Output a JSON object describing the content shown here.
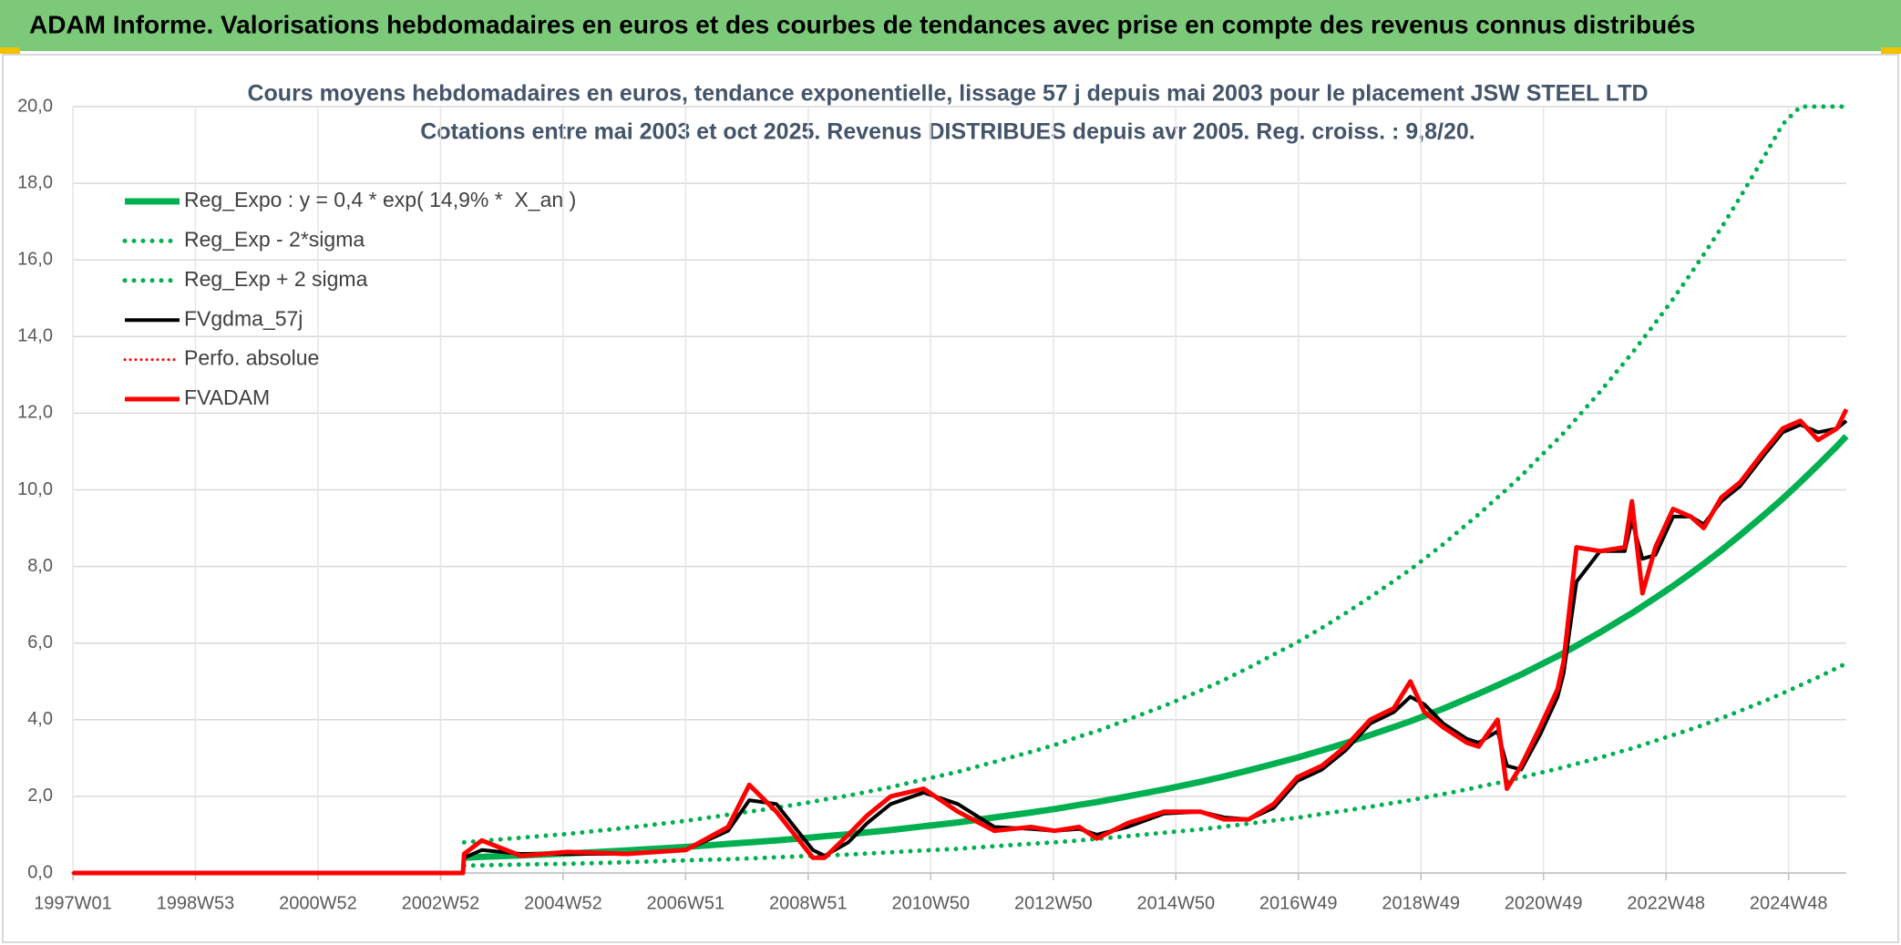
{
  "header": {
    "title": "ADAM Informe. Valorisations hebdomadaires en euros et des courbes de tendances avec prise en compte des revenus connus distribués"
  },
  "chart_data": {
    "type": "line",
    "title": "Cours moyens hebdomadaires en euros, tendance exponentielle, lissage 57 j depuis mai 2003 pour le placement JSW STEEL LTD",
    "subtitle": "Cotations entre mai 2003 et oct 2025. Revenus DISTRIBUES depuis avr 2005. Reg. croiss. : 9,8/20.",
    "x": [
      0,
      331,
      332,
      347,
      380,
      420,
      470,
      520,
      556,
      574,
      597,
      628,
      638,
      658,
      674,
      694,
      722,
      751,
      782,
      813,
      833,
      854,
      869,
      895,
      926,
      957,
      977,
      998,
      1019,
      1039,
      1060,
      1080,
      1101,
      1121,
      1135,
      1147,
      1163,
      1183,
      1193,
      1209,
      1217,
      1229,
      1245,
      1260,
      1265,
      1276,
      1296,
      1317,
      1323,
      1332,
      1343,
      1358,
      1373,
      1384,
      1399,
      1415,
      1435,
      1451,
      1466,
      1481,
      1497,
      1505
    ],
    "xlim": [
      0,
      1505
    ],
    "xticks": [
      {
        "value": 0,
        "label": "1997W01"
      },
      {
        "value": 104,
        "label": "1998W53"
      },
      {
        "value": 208,
        "label": "2000W52"
      },
      {
        "value": 312,
        "label": "2002W52"
      },
      {
        "value": 416,
        "label": "2004W52"
      },
      {
        "value": 520,
        "label": "2006W51"
      },
      {
        "value": 624,
        "label": "2008W51"
      },
      {
        "value": 728,
        "label": "2010W50"
      },
      {
        "value": 832,
        "label": "2012W50"
      },
      {
        "value": 936,
        "label": "2014W50"
      },
      {
        "value": 1040,
        "label": "2016W49"
      },
      {
        "value": 1144,
        "label": "2018W49"
      },
      {
        "value": 1248,
        "label": "2020W49"
      },
      {
        "value": 1352,
        "label": "2022W48"
      },
      {
        "value": 1456,
        "label": "2024W48"
      }
    ],
    "ylim": [
      0,
      20
    ],
    "yticks": [
      {
        "value": 0,
        "label": "0,0"
      },
      {
        "value": 2,
        "label": "2,0"
      },
      {
        "value": 4,
        "label": "4,0"
      },
      {
        "value": 6,
        "label": "6,0"
      },
      {
        "value": 8,
        "label": "8,0"
      },
      {
        "value": 10,
        "label": "10,0"
      },
      {
        "value": 12,
        "label": "12,0"
      },
      {
        "value": 14,
        "label": "14,0"
      },
      {
        "value": 16,
        "label": "16,0"
      },
      {
        "value": 18,
        "label": "18,0"
      },
      {
        "value": 20,
        "label": "20,0"
      }
    ],
    "grid": true,
    "legend": "top-left",
    "series": [
      {
        "name": "Reg_Expo : y = 0,4 * exp( 14,9% *  X_an )",
        "color": "#00b050",
        "dotted": false,
        "width": 7,
        "values": [
          null,
          null,
          0.4,
          0.42,
          0.46,
          0.51,
          0.59,
          0.68,
          0.76,
          0.8,
          0.85,
          0.93,
          0.96,
          1.01,
          1.06,
          1.12,
          1.22,
          1.32,
          1.45,
          1.58,
          1.67,
          1.78,
          1.85,
          2.0,
          2.18,
          2.38,
          2.52,
          2.68,
          2.85,
          3.01,
          3.2,
          3.39,
          3.6,
          3.81,
          3.96,
          4.1,
          4.29,
          4.55,
          4.68,
          4.9,
          5.01,
          5.18,
          5.43,
          5.66,
          5.74,
          5.93,
          6.28,
          6.67,
          6.78,
          6.96,
          7.18,
          7.49,
          7.82,
          8.07,
          8.42,
          8.82,
          9.34,
          9.77,
          10.2,
          10.65,
          11.14,
          11.4
        ]
      },
      {
        "name": "Reg_Exp - 2*sigma",
        "color": "#00b050",
        "dotted": true,
        "width": 5,
        "values": [
          null,
          null,
          0.19,
          0.2,
          0.22,
          0.24,
          0.28,
          0.33,
          0.36,
          0.38,
          0.41,
          0.45,
          0.46,
          0.48,
          0.51,
          0.54,
          0.59,
          0.63,
          0.7,
          0.76,
          0.8,
          0.85,
          0.89,
          0.96,
          1.05,
          1.14,
          1.21,
          1.29,
          1.37,
          1.44,
          1.54,
          1.63,
          1.73,
          1.83,
          1.9,
          1.97,
          2.06,
          2.18,
          2.25,
          2.35,
          2.4,
          2.49,
          2.61,
          2.72,
          2.76,
          2.85,
          3.01,
          3.2,
          3.25,
          3.34,
          3.45,
          3.6,
          3.75,
          3.87,
          4.04,
          4.23,
          4.48,
          4.69,
          4.9,
          5.11,
          5.35,
          5.47
        ]
      },
      {
        "name": "Reg_Exp + 2 sigma",
        "color": "#00b050",
        "dotted": true,
        "width": 5,
        "values": [
          null,
          null,
          0.8,
          0.84,
          0.92,
          1.02,
          1.18,
          1.36,
          1.52,
          1.6,
          1.7,
          1.86,
          1.92,
          2.02,
          2.12,
          2.24,
          2.44,
          2.64,
          2.9,
          3.16,
          3.34,
          3.56,
          3.7,
          4.0,
          4.36,
          4.76,
          5.04,
          5.36,
          5.7,
          6.02,
          6.4,
          6.78,
          7.2,
          7.62,
          7.92,
          8.2,
          8.58,
          9.1,
          9.36,
          9.8,
          10.02,
          10.36,
          10.86,
          11.32,
          11.48,
          11.86,
          12.56,
          13.34,
          13.56,
          13.92,
          14.36,
          14.98,
          15.64,
          16.14,
          16.84,
          17.64,
          18.68,
          19.54,
          20,
          20,
          20,
          20
        ]
      },
      {
        "name": "FVgdma_57j",
        "color": "#000000",
        "dotted": false,
        "width": 4,
        "values": [
          0,
          0,
          0.4,
          0.6,
          0.5,
          0.5,
          0.5,
          0.6,
          1.1,
          1.9,
          1.8,
          0.6,
          0.45,
          0.8,
          1.3,
          1.8,
          2.1,
          1.8,
          1.2,
          1.15,
          1.1,
          1.15,
          1.0,
          1.2,
          1.55,
          1.6,
          1.45,
          1.4,
          1.7,
          2.4,
          2.7,
          3.2,
          3.9,
          4.2,
          4.6,
          4.4,
          3.9,
          3.5,
          3.4,
          3.7,
          2.8,
          2.7,
          3.6,
          4.6,
          5.2,
          7.6,
          8.4,
          8.4,
          9.2,
          8.2,
          8.3,
          9.3,
          9.3,
          9.1,
          9.7,
          10.1,
          10.9,
          11.5,
          11.7,
          11.5,
          11.6,
          11.8
        ]
      },
      {
        "name": "Perfo. absolue",
        "color": "#ff0000",
        "dotted": true,
        "width": 3,
        "values": [
          0,
          0,
          0.5,
          0.85,
          0.45,
          0.55,
          0.5,
          0.6,
          1.2,
          2.3,
          1.6,
          0.4,
          0.4,
          1.0,
          1.5,
          2.0,
          2.2,
          1.6,
          1.1,
          1.2,
          1.1,
          1.2,
          0.9,
          1.3,
          1.6,
          1.6,
          1.4,
          1.4,
          1.8,
          2.5,
          2.8,
          3.3,
          4.0,
          4.3,
          5.0,
          4.2,
          3.8,
          3.4,
          3.3,
          4.0,
          2.2,
          2.8,
          3.8,
          4.8,
          5.5,
          8.5,
          8.4,
          8.5,
          9.7,
          7.3,
          8.5,
          9.5,
          9.3,
          9.0,
          9.8,
          10.2,
          11.0,
          11.6,
          11.8,
          11.3,
          11.6,
          12.1
        ]
      },
      {
        "name": "FVADAM",
        "color": "#ff0000",
        "dotted": false,
        "width": 5,
        "values": [
          0,
          0,
          0.5,
          0.85,
          0.45,
          0.55,
          0.5,
          0.6,
          1.2,
          2.3,
          1.6,
          0.4,
          0.4,
          1.0,
          1.5,
          2.0,
          2.2,
          1.6,
          1.1,
          1.2,
          1.1,
          1.2,
          0.9,
          1.3,
          1.6,
          1.6,
          1.4,
          1.4,
          1.8,
          2.5,
          2.8,
          3.3,
          4.0,
          4.3,
          5.0,
          4.2,
          3.8,
          3.4,
          3.3,
          4.0,
          2.2,
          2.8,
          3.8,
          4.8,
          5.5,
          8.5,
          8.4,
          8.5,
          9.7,
          7.3,
          8.5,
          9.5,
          9.3,
          9.0,
          9.8,
          10.2,
          11.0,
          11.6,
          11.8,
          11.3,
          11.6,
          12.1
        ]
      }
    ]
  }
}
